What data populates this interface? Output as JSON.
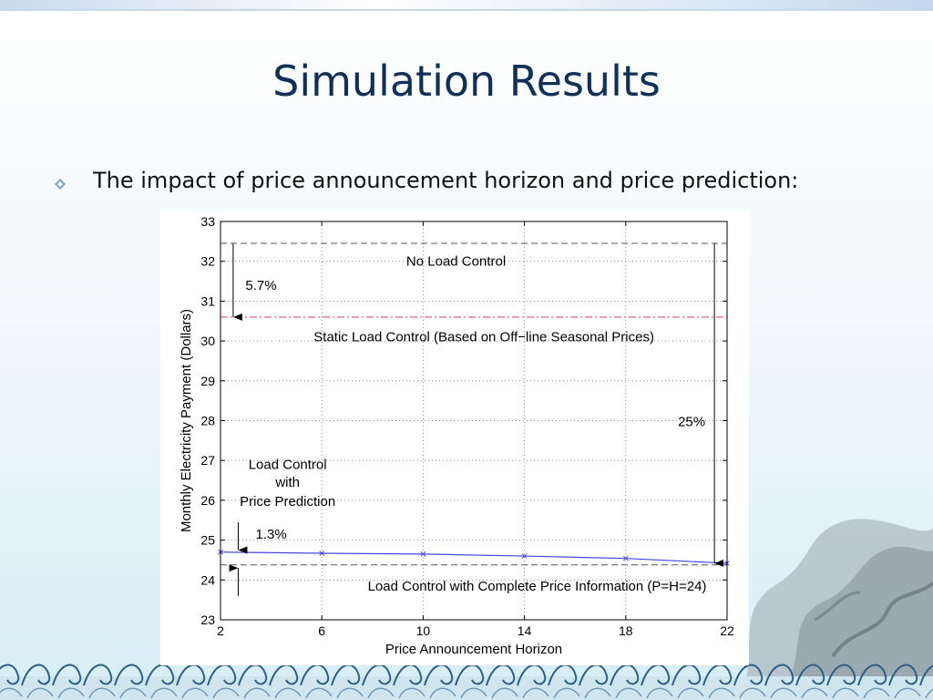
{
  "slide": {
    "title": "Simulation Results",
    "bullet": "The impact of price announcement horizon and price prediction:"
  },
  "colors": {
    "title": "#10305a",
    "series_line": "#4646e6",
    "static_line": "#e0405a",
    "reference_line": "#555555"
  },
  "chart_data": {
    "type": "line",
    "title": "",
    "xlabel": "Price Announcement Horizon",
    "ylabel": "Monthly Electricity Payment (Dollars)",
    "xlim": [
      2,
      22
    ],
    "ylim": [
      23,
      33
    ],
    "xticks": [
      2,
      6,
      10,
      14,
      18,
      22
    ],
    "yticks": [
      23,
      24,
      25,
      26,
      27,
      28,
      29,
      30,
      31,
      32,
      33
    ],
    "grid": true,
    "series": [
      {
        "name": "Load Control with Price Prediction",
        "x": [
          2,
          6,
          10,
          14,
          18,
          22
        ],
        "y": [
          24.7,
          24.67,
          24.65,
          24.6,
          24.54,
          24.42
        ],
        "marker": "x"
      }
    ],
    "reference_lines": [
      {
        "name": "No Load Control",
        "y": 32.45,
        "style": "dashed"
      },
      {
        "name": "Static Load Control (Based on Off−line Seasonal Prices)",
        "y": 30.6,
        "style": "dashdot"
      },
      {
        "name": "Load Control with Complete Price Information (P=H=24)",
        "y": 24.38,
        "style": "dashed"
      }
    ],
    "annotations": [
      {
        "text": "No Load Control",
        "x": 11.3,
        "y": 32.0
      },
      {
        "text": "Static Load Control (Based on Off−line Seasonal Prices)",
        "x": 12.4,
        "y": 30.1
      },
      {
        "text": "5.7%",
        "x": 3.6,
        "y": 31.4
      },
      {
        "text": "25%",
        "x": 20.6,
        "y": 27.98
      },
      {
        "text": "1.3%",
        "x": 4.0,
        "y": 25.15
      },
      {
        "text": "Load Control",
        "x": 4.65,
        "y": 26.9
      },
      {
        "text": "with",
        "x": 4.65,
        "y": 26.45
      },
      {
        "text": "Price Prediction",
        "x": 4.65,
        "y": 25.98
      },
      {
        "text": "Load Control with Complete Price Information (P=H=24)",
        "x": 14.5,
        "y": 23.85
      }
    ],
    "arrows": [
      {
        "x": 2.5,
        "y_from": 32.45,
        "y_to": 30.6
      },
      {
        "x": 21.5,
        "y_from": 32.45,
        "y_to": 24.42
      },
      {
        "x": 2.7,
        "y_from": 25.45,
        "y_to": 24.75
      },
      {
        "x": 2.7,
        "y_from": 23.6,
        "y_to": 24.3
      }
    ]
  }
}
